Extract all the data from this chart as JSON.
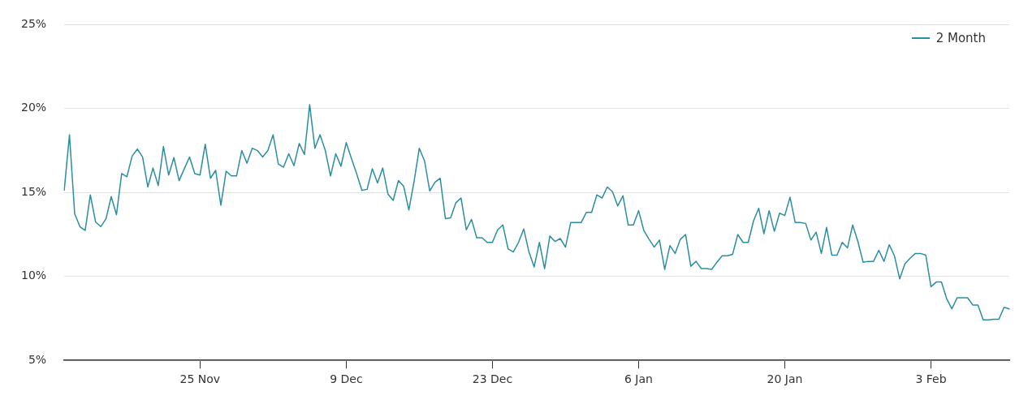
{
  "chart_data": {
    "type": "line",
    "categories": [
      null,
      null,
      null,
      null,
      null,
      null,
      null,
      null,
      null,
      null,
      null,
      null,
      null,
      null,
      null,
      null,
      null,
      null,
      null,
      null,
      null,
      null,
      null,
      null,
      null,
      null,
      "25 Nov",
      null,
      null,
      null,
      null,
      null,
      null,
      null,
      null,
      null,
      null,
      null,
      null,
      null,
      null,
      null,
      null,
      null,
      null,
      null,
      null,
      null,
      null,
      null,
      null,
      null,
      null,
      null,
      "9 Dec",
      null,
      null,
      null,
      null,
      null,
      null,
      null,
      null,
      null,
      null,
      null,
      null,
      null,
      null,
      null,
      null,
      null,
      null,
      null,
      null,
      null,
      null,
      null,
      null,
      null,
      null,
      null,
      "23 Dec",
      null,
      null,
      null,
      null,
      null,
      null,
      null,
      null,
      null,
      null,
      null,
      null,
      null,
      null,
      null,
      null,
      null,
      null,
      null,
      null,
      null,
      null,
      null,
      null,
      null,
      null,
      null,
      "6 Jan",
      null,
      null,
      null,
      null,
      null,
      null,
      null,
      null,
      null,
      null,
      null,
      null,
      null,
      null,
      null,
      null,
      null,
      null,
      null,
      null,
      null,
      null,
      null,
      null,
      null,
      null,
      null,
      "20 Jan",
      null,
      null,
      null,
      null,
      null,
      null,
      null,
      null,
      null,
      null,
      null,
      null,
      null,
      null,
      null,
      null,
      null,
      null,
      null,
      null,
      null,
      null,
      null,
      null,
      null,
      null,
      null,
      "3 Feb",
      null,
      null,
      null,
      null,
      null,
      null,
      null,
      null,
      null,
      null,
      null,
      null,
      null,
      null,
      null
    ],
    "series": [
      {
        "name": "2 Month",
        "color": "#2b8e9e",
        "values": [
          15.14,
          18.44,
          13.73,
          12.97,
          12.74,
          14.86,
          13.25,
          12.97,
          13.44,
          14.76,
          13.68,
          16.13,
          15.94,
          17.17,
          17.59,
          17.12,
          15.33,
          16.46,
          15.42,
          17.74,
          16.04,
          17.08,
          15.71,
          16.42,
          17.12,
          16.13,
          16.04,
          17.88,
          15.85,
          16.32,
          14.25,
          16.27,
          15.99,
          15.99,
          17.5,
          16.75,
          17.64,
          17.5,
          17.12,
          17.5,
          18.44,
          16.7,
          16.51,
          17.31,
          16.6,
          17.92,
          17.26,
          20.24,
          17.64,
          18.44,
          17.5,
          15.99,
          17.31,
          16.56,
          17.97,
          17.03,
          16.13,
          15.14,
          15.19,
          16.42,
          15.57,
          16.46,
          14.91,
          14.53,
          15.71,
          15.38,
          13.96,
          15.66,
          17.64,
          16.89,
          15.09,
          15.61,
          15.85,
          13.44,
          13.49,
          14.39,
          14.67,
          12.78,
          13.4,
          12.31,
          12.31,
          12.03,
          12.03,
          12.78,
          13.07,
          11.65,
          11.46,
          12.03,
          12.83,
          11.46,
          10.57,
          12.03,
          10.47,
          12.41,
          12.08,
          12.26,
          11.75,
          13.21,
          13.21,
          13.21,
          13.82,
          13.82,
          14.86,
          14.67,
          15.33,
          15.05,
          14.2,
          14.81,
          13.07,
          13.07,
          13.92,
          12.74,
          12.22,
          11.75,
          12.17,
          10.42,
          11.84,
          11.37,
          12.22,
          12.5,
          10.61,
          10.9,
          10.47,
          10.47,
          10.42,
          10.85,
          11.23,
          11.23,
          11.32,
          12.5,
          12.03,
          12.03,
          13.3,
          14.06,
          12.55,
          13.92,
          12.69,
          13.77,
          13.63,
          14.72,
          13.21,
          13.21,
          13.16,
          12.17,
          12.64,
          11.37,
          12.92,
          11.27,
          11.27,
          12.03,
          11.7,
          13.07,
          12.08,
          10.85,
          10.9,
          10.9,
          11.56,
          10.9,
          11.89,
          11.23,
          9.86,
          10.75,
          11.09,
          11.37,
          11.37,
          11.27,
          9.39,
          9.67,
          9.67,
          8.68,
          8.07,
          8.73,
          8.73,
          8.73,
          8.3,
          8.3,
          7.41,
          7.41,
          7.45,
          7.45,
          8.16,
          8.07
        ]
      }
    ],
    "ylim": [
      5,
      25
    ],
    "yticks": [
      {
        "value": 5,
        "label": "5%"
      },
      {
        "value": 10,
        "label": "10%"
      },
      {
        "value": 15,
        "label": "15%"
      },
      {
        "value": 20,
        "label": "20%"
      },
      {
        "value": 25,
        "label": "25%"
      }
    ],
    "grid": "y",
    "legend": "top right",
    "marker": "none",
    "line_style": "solid"
  }
}
